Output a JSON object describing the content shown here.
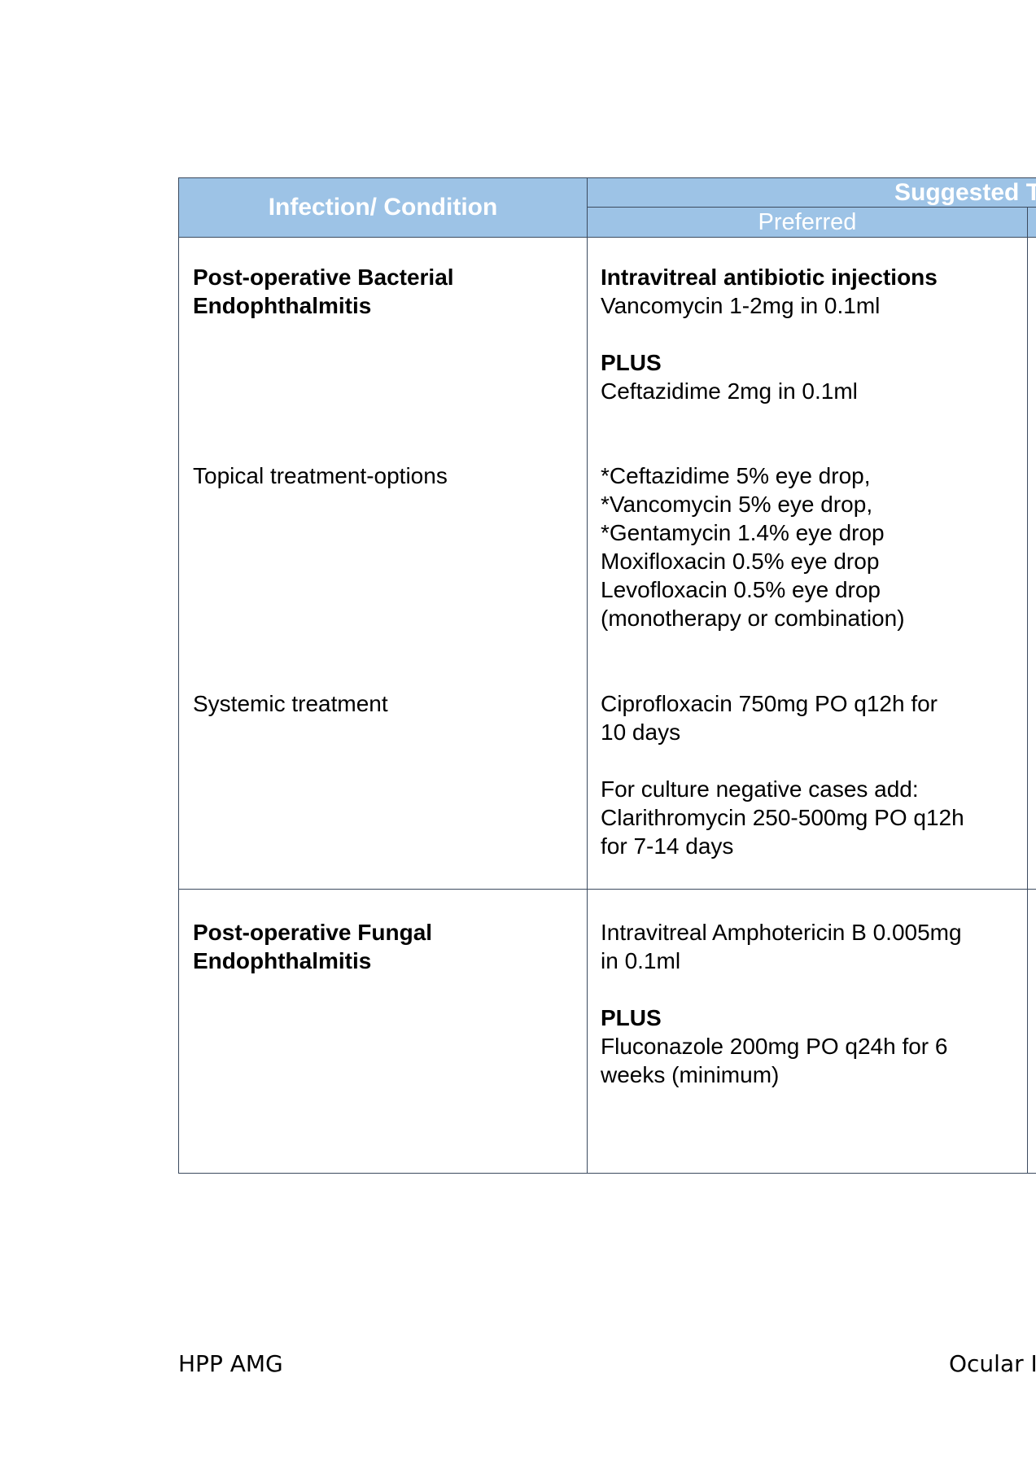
{
  "table": {
    "header": {
      "condition": "Infection/ Condition",
      "suggested": "Suggested T",
      "preferred": "Preferred"
    },
    "rows": [
      {
        "condition": [
          "Post-operative Bacterial",
          "Endophthalmitis"
        ],
        "treatment_title": "Intravitreal antibiotic injections",
        "treatment_line1": "Vancomycin 1-2mg in 0.1ml",
        "plus": "PLUS",
        "treatment_line2": "Ceftazidime 2mg in 0.1ml"
      },
      {
        "condition": "Topical  treatment-options",
        "treatment": [
          "*Ceftazidime 5% eye drop,",
          "*Vancomycin 5% eye drop,",
          "*Gentamycin 1.4% eye drop",
          "Moxifloxacin 0.5% eye drop",
          "Levofloxacin 0.5% eye drop",
          "(monotherapy or combination)"
        ]
      },
      {
        "condition": "Systemic treatment",
        "treatment_a": [
          "Ciprofloxacin 750mg PO q12h for",
          "10 days"
        ],
        "treatment_b": [
          "For culture negative cases add:",
          "Clarithromycin 250-500mg PO q12h",
          "for 7-14 days"
        ]
      },
      {
        "condition": [
          "Post-operative Fungal",
          "Endophthalmitis"
        ],
        "treatment_a": [
          "Intravitreal Amphotericin B 0.005mg",
          "in 0.1ml"
        ],
        "plus": "PLUS",
        "treatment_b": [
          "Fluconazole 200mg PO q24h for 6",
          "weeks (minimum)"
        ]
      }
    ]
  },
  "footer": {
    "left": "HPP AMG",
    "right": "Ocular In"
  },
  "colors": {
    "header_bg": "#9dc3e6",
    "header_text": "#ffffff",
    "border": "#3b4a5e"
  }
}
